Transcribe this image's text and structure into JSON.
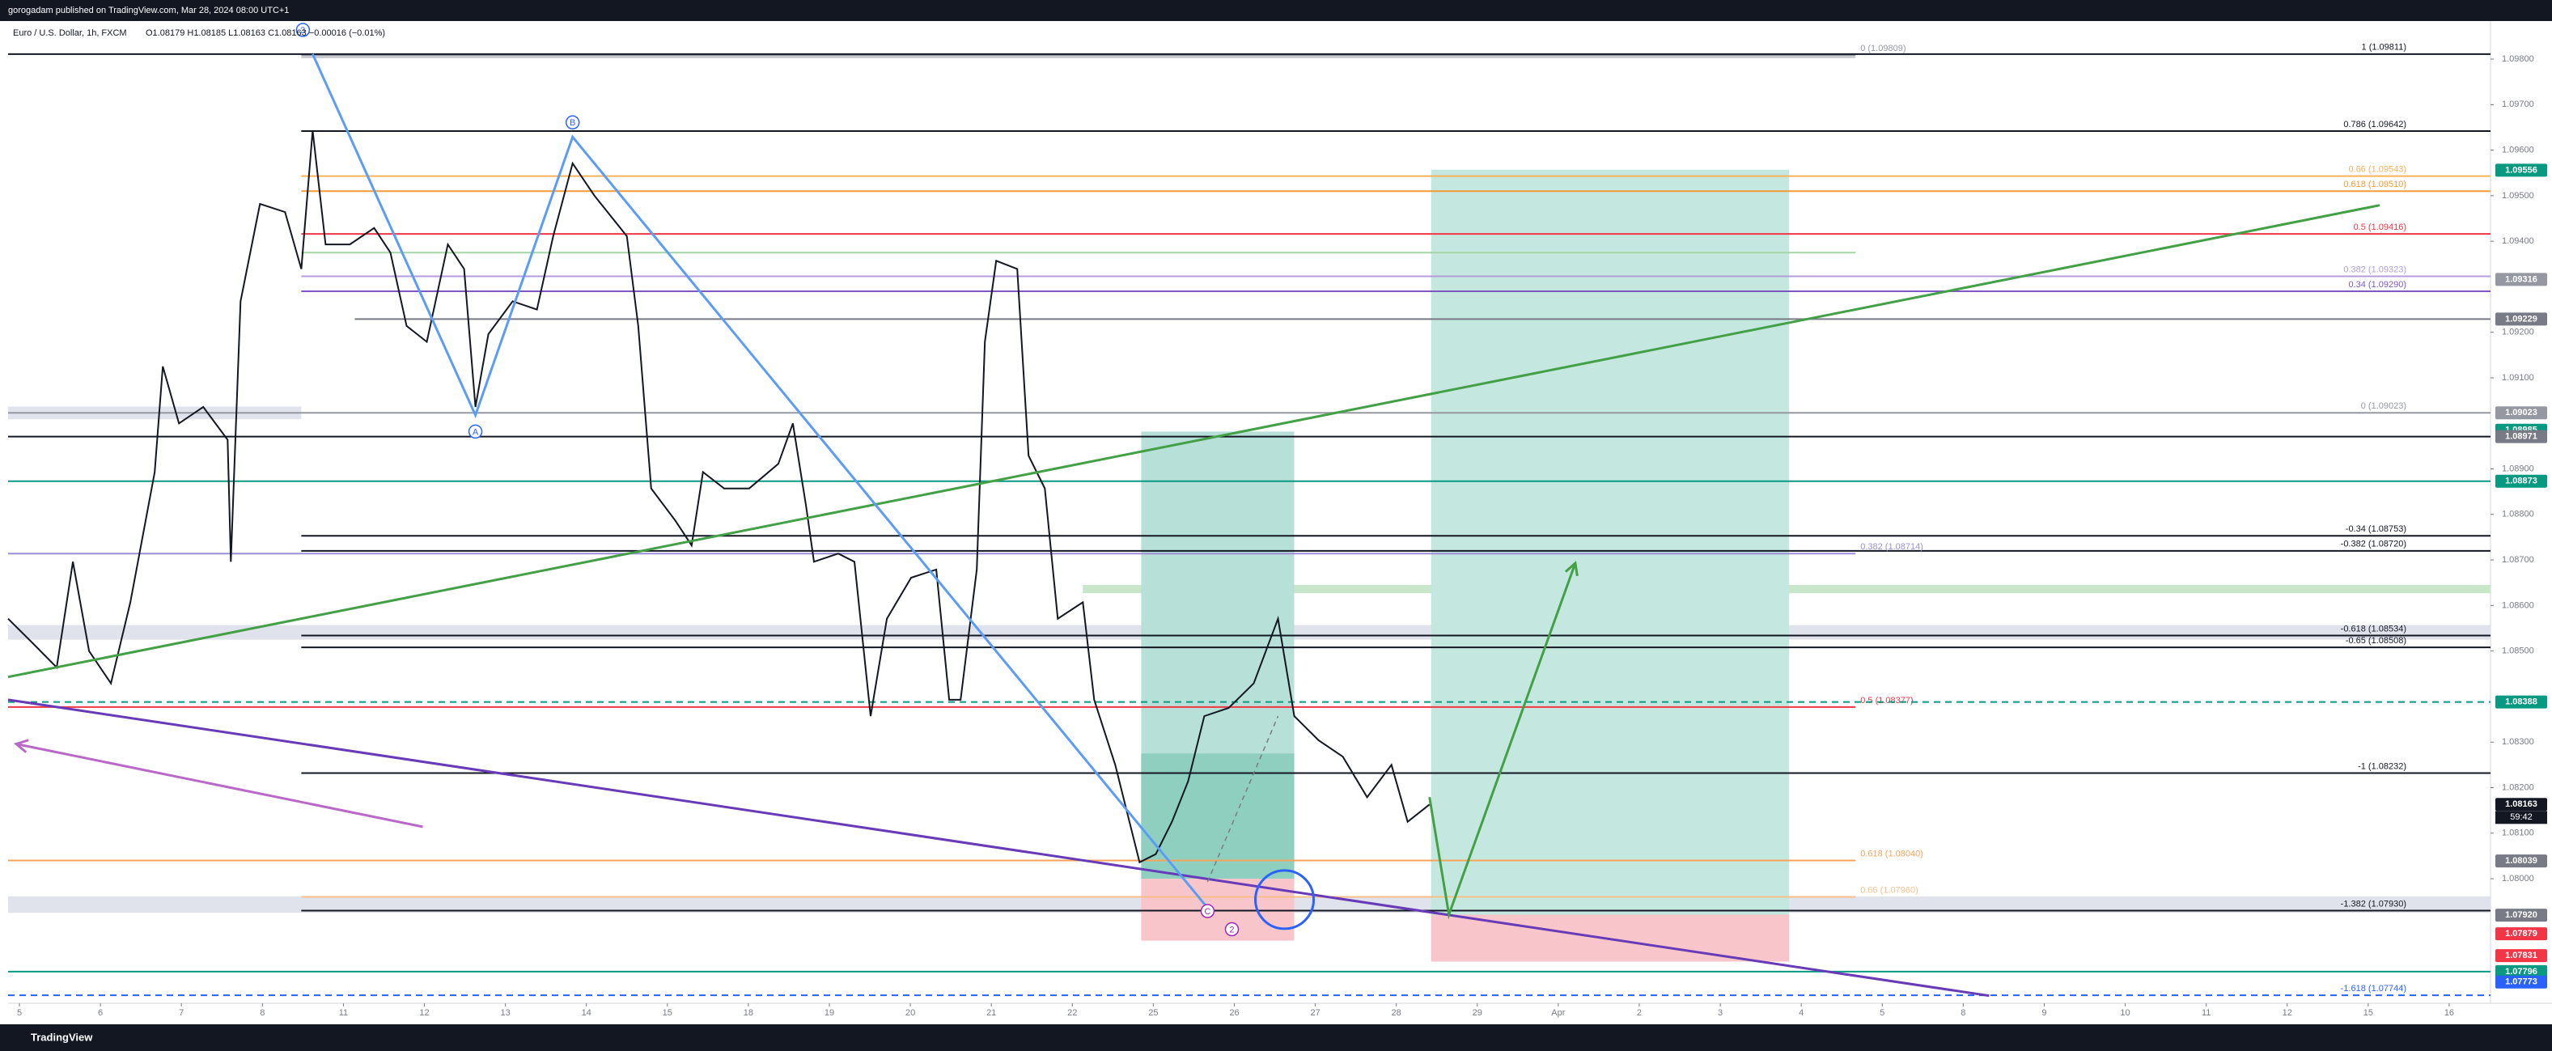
{
  "chart_data": {
    "type": "line",
    "header": "gorogadam published on TradingView.com, Mar 28, 2024 08:00 UTC+1",
    "ohlc": "O1.08179 H1.08185 L1.08163 C1.08163 −0.00016 (−0.01%)",
    "brand": "TradingView",
    "xlim": [
      -0.14,
      30.51
    ],
    "xticks": [
      {
        "value": 0,
        "label": "5"
      },
      {
        "value": 1,
        "label": "6"
      },
      {
        "value": 2,
        "label": "7"
      },
      {
        "value": 3,
        "label": "8"
      },
      {
        "value": 4,
        "label": "11"
      },
      {
        "value": 5,
        "label": "12"
      },
      {
        "value": 6,
        "label": "13"
      },
      {
        "value": 7,
        "label": "14"
      },
      {
        "value": 8,
        "label": "15"
      },
      {
        "value": 9,
        "label": "18"
      },
      {
        "value": 10,
        "label": "19"
      },
      {
        "value": 11,
        "label": "20"
      },
      {
        "value": 12,
        "label": "21"
      },
      {
        "value": 13,
        "label": "22"
      },
      {
        "value": 14,
        "label": "25"
      },
      {
        "value": 15,
        "label": "26"
      },
      {
        "value": 16,
        "label": "27"
      },
      {
        "value": 17,
        "label": "28"
      },
      {
        "value": 18,
        "label": "29"
      },
      {
        "value": 19,
        "label": "Apr"
      },
      {
        "value": 20,
        "label": "2"
      },
      {
        "value": 21,
        "label": "3"
      },
      {
        "value": 22,
        "label": "4"
      },
      {
        "value": 23,
        "label": "5"
      },
      {
        "value": 24,
        "label": "8"
      },
      {
        "value": 25,
        "label": "9"
      },
      {
        "value": 26,
        "label": "10"
      },
      {
        "value": 27,
        "label": "11"
      },
      {
        "value": 28,
        "label": "12"
      },
      {
        "value": 29,
        "label": "15"
      },
      {
        "value": 30,
        "label": "16"
      }
    ],
    "ylim": [
      1.0773,
      1.0988
    ],
    "yticks": [
      {
        "value": 1.098,
        "label": "1.09800"
      },
      {
        "value": 1.097,
        "label": "1.09700"
      },
      {
        "value": 1.096,
        "label": "1.09600"
      },
      {
        "value": 1.095,
        "label": "1.09500"
      },
      {
        "value": 1.094,
        "label": "1.09400"
      },
      {
        "value": 1.092,
        "label": "1.09200"
      },
      {
        "value": 1.091,
        "label": "1.09100"
      },
      {
        "value": 1.089,
        "label": "1.08900"
      },
      {
        "value": 1.088,
        "label": "1.08800"
      },
      {
        "value": 1.087,
        "label": "1.08700"
      },
      {
        "value": 1.086,
        "label": "1.08600"
      },
      {
        "value": 1.085,
        "label": "1.08500"
      },
      {
        "value": 1.083,
        "label": "1.08300"
      },
      {
        "value": 1.082,
        "label": "1.08200"
      },
      {
        "value": 1.081,
        "label": "1.08100"
      },
      {
        "value": 1.08,
        "label": "1.08000"
      }
    ],
    "x": [
      -0.14,
      0.16,
      0.46,
      0.66,
      0.86,
      1.13,
      1.37,
      1.67,
      1.77,
      1.97,
      2.27,
      2.57,
      2.61,
      2.73,
      2.97,
      3.28,
      3.48,
      3.62,
      3.78,
      4.08,
      4.38,
      4.58,
      4.78,
      5.03,
      5.29,
      5.49,
      5.63,
      5.79,
      6.09,
      6.39,
      6.59,
      6.83,
      7.1,
      7.5,
      7.64,
      7.8,
      8.1,
      8.3,
      8.44,
      8.7,
      9.01,
      9.37,
      9.55,
      9.71,
      9.81,
      10.11,
      10.31,
      10.51,
      10.71,
      11.01,
      11.32,
      11.48,
      11.62,
      11.82,
      11.92,
      12.06,
      12.32,
      12.46,
      12.66,
      12.82,
      13.13,
      13.27,
      13.53,
      13.83,
      14.03,
      14.23,
      14.43,
      14.63,
      14.93,
      15.24,
      15.54,
      15.74,
      16.04,
      16.34,
      16.64,
      16.94,
      17.14,
      17.41
    ],
    "series": [
      {
        "name": "Euro / U.S. Dollar, 1h, FXCM",
        "color": "#131722",
        "values": [
          1.08571,
          1.08518,
          1.08464,
          1.08696,
          1.085,
          1.08429,
          1.08607,
          1.08893,
          1.09125,
          1.09,
          1.09036,
          1.08964,
          1.08696,
          1.09268,
          1.09482,
          1.09464,
          1.09339,
          1.09643,
          1.09393,
          1.09393,
          1.09429,
          1.09375,
          1.09214,
          1.09179,
          1.09393,
          1.09339,
          1.09036,
          1.09196,
          1.09268,
          1.0925,
          1.09411,
          1.09571,
          1.095,
          1.09411,
          1.09214,
          1.08857,
          1.08786,
          1.08732,
          1.08893,
          1.08857,
          1.08857,
          1.08911,
          1.09,
          1.08821,
          1.08696,
          1.08714,
          1.08696,
          1.08357,
          1.08571,
          1.08661,
          1.08679,
          1.08393,
          1.08393,
          1.08679,
          1.09179,
          1.09357,
          1.09339,
          1.08929,
          1.08857,
          1.08571,
          1.08607,
          1.08393,
          1.0825,
          1.08036,
          1.08054,
          1.08125,
          1.08214,
          1.08357,
          1.08375,
          1.08429,
          1.08571,
          1.08357,
          1.08304,
          1.08268,
          1.08179,
          1.0825,
          1.08125,
          1.08163
        ]
      }
    ],
    "zones": [
      {
        "x": [
          3.48,
          22.67
        ],
        "y": [
          1.09812,
          1.09802
        ],
        "color": "#c9cbd1"
      },
      {
        "x": [
          -0.14,
          3.48
        ],
        "y": [
          1.09037,
          1.09009
        ],
        "color": "#e0e3eb"
      },
      {
        "x": [
          -0.14,
          30.51
        ],
        "y": [
          1.08557,
          1.08525
        ],
        "color": "#e0e3eb"
      },
      {
        "x": [
          -0.14,
          30.51
        ],
        "y": [
          1.07961,
          1.07925
        ],
        "color": "#e0e3eb"
      },
      {
        "x": [
          13.13,
          30.51
        ],
        "y": [
          1.08645,
          1.08627
        ],
        "color": "#c8e6c9"
      },
      {
        "x": [
          13.85,
          15.74
        ],
        "y": [
          1.08982,
          1.08
        ],
        "color": "#b7e1d8"
      },
      {
        "x": [
          13.85,
          15.74
        ],
        "y": [
          1.08275,
          1.08
        ],
        "color": "#8fcfbf"
      },
      {
        "x": [
          13.85,
          15.74
        ],
        "y": [
          1.08,
          1.07864
        ],
        "color": "#f8c5ca"
      },
      {
        "x": [
          17.43,
          21.85
        ],
        "y": [
          1.09557,
          1.07921
        ],
        "color": "#c4e7df"
      },
      {
        "x": [
          17.43,
          21.85
        ],
        "y": [
          1.07921,
          1.07818
        ],
        "color": "#f8c5ca"
      }
    ],
    "levels": [
      {
        "value": 1.09809,
        "x0": 3.48,
        "x1": 22.67,
        "color": "#9598a1",
        "label": "0 (1.09809)"
      },
      {
        "value": 1.09811,
        "x0": -0.14,
        "x1": 30.51,
        "color": "#131722",
        "label": "1 (1.09811)"
      },
      {
        "value": 1.09642,
        "x0": 3.48,
        "x1": 30.51,
        "color": "#131722",
        "label": "0.786 (1.09642)"
      },
      {
        "value": 1.09543,
        "x0": 3.48,
        "x1": 30.51,
        "color": "#f7b25c",
        "label": "0.66 (1.09543)"
      },
      {
        "value": 1.0951,
        "x0": 3.48,
        "x1": 30.51,
        "color": "#f29c38",
        "label": "0.618 (1.09510)"
      },
      {
        "value": 1.09416,
        "x0": 3.48,
        "x1": 30.51,
        "color": "#f23645",
        "label": "0.5 (1.09416)"
      },
      {
        "value": 1.09375,
        "x0": 3.48,
        "x1": 22.67,
        "color": "#a5d6a7"
      },
      {
        "value": 1.09323,
        "x0": 3.48,
        "x1": 30.51,
        "color": "#b39ddb",
        "label": "0.382 (1.09323)"
      },
      {
        "value": 1.0929,
        "x0": 3.48,
        "x1": 30.51,
        "color": "#7e57c2",
        "label": "0.34 (1.09290)"
      },
      {
        "value": 1.09229,
        "x0": 4.14,
        "x1": 30.51,
        "color": "#787b86"
      },
      {
        "value": 1.09023,
        "x0": -0.14,
        "x1": 30.51,
        "color": "#9598a1",
        "label": "0 (1.09023)"
      },
      {
        "value": 1.08971,
        "x0": -0.14,
        "x1": 30.51,
        "color": "#131722"
      },
      {
        "value": 1.08873,
        "x0": -0.14,
        "x1": 30.51,
        "color": "#089981"
      },
      {
        "value": 1.08753,
        "x0": 3.48,
        "x1": 30.51,
        "color": "#131722",
        "label": "-0.34 (1.08753)"
      },
      {
        "value": 1.0872,
        "x0": 3.48,
        "x1": 30.51,
        "color": "#131722",
        "label": "-0.382 (1.08720)"
      },
      {
        "value": 1.08714,
        "x0": -0.14,
        "x1": 22.67,
        "color": "#9c8fd6",
        "label": "0.382 (1.08714)"
      },
      {
        "value": 1.08534,
        "x0": 3.48,
        "x1": 30.51,
        "color": "#131722",
        "label": "-0.618 (1.08534)"
      },
      {
        "value": 1.08508,
        "x0": 3.48,
        "x1": 30.51,
        "color": "#131722",
        "label": "-0.65 (1.08508)"
      },
      {
        "value": 1.08377,
        "x0": -0.14,
        "x1": 22.67,
        "color": "#f23645",
        "label": "0.5 (1.08377)"
      },
      {
        "value": 1.08388,
        "x0": -0.14,
        "x1": 30.51,
        "color": "#089981",
        "dash": true
      },
      {
        "value": 1.08232,
        "x0": 3.48,
        "x1": 30.51,
        "color": "#131722",
        "label": "-1 (1.08232)"
      },
      {
        "value": 1.0804,
        "x0": -0.14,
        "x1": 22.67,
        "color": "#f7a35c",
        "label": "0.618 (1.08040)"
      },
      {
        "value": 1.0796,
        "x0": 3.48,
        "x1": 22.67,
        "color": "#f7c08a",
        "label": "0.66 (1.07960)"
      },
      {
        "value": 1.0793,
        "x0": 3.48,
        "x1": 30.51,
        "color": "#131722",
        "label": "-1.382 (1.07930)"
      },
      {
        "value": 1.07796,
        "x0": -0.14,
        "x1": 30.51,
        "color": "#089981"
      },
      {
        "value": 1.07744,
        "x0": -0.14,
        "x1": 30.51,
        "color": "#2962ff",
        "dash": true,
        "label": "-1.618 (1.07744)"
      }
    ],
    "drawings": [
      {
        "x": [
          -0.14,
          29.14
        ],
        "y": [
          1.08443,
          1.09479
        ],
        "color": "#43a047"
      },
      {
        "x": [
          -0.14,
          24.32
        ],
        "y": [
          1.08393,
          1.07743
        ],
        "color": "#673ab7"
      },
      {
        "x": [
          3.62,
          5.63,
          6.83,
          14.67
        ],
        "y": [
          1.09811,
          1.09018,
          1.09629,
          1.07936
        ],
        "color": "#5b9cf6"
      },
      {
        "x": [
          4.98,
          -0.04
        ],
        "y": [
          1.08114,
          1.08296
        ],
        "color": "#ba68c8",
        "arrow": true
      },
      {
        "x": [
          17.41,
          17.65,
          19.21
        ],
        "y": [
          1.08179,
          1.07921,
          1.08693
        ],
        "color": "#43a047",
        "arrow": true
      },
      {
        "x": [
          14.67,
          15.54
        ],
        "y": [
          1.07993,
          1.08357
        ],
        "color": "#787b86",
        "dash": true
      },
      {
        "x": [
          15.62
        ],
        "y": [
          1.07954
        ],
        "color": "#2962ff",
        "shape": "circle"
      }
    ],
    "wave_labels": [
      {
        "text": "3",
        "x": 3.5,
        "y": 1.09864,
        "color": "#2962ff"
      },
      {
        "text": "B",
        "x": 6.83,
        "y": 1.09661,
        "color": "#2962ff"
      },
      {
        "text": "A",
        "x": 5.63,
        "y": 1.08982,
        "color": "#2962ff"
      },
      {
        "text": "C",
        "x": 14.67,
        "y": 1.07929,
        "color": "#9c27b0"
      },
      {
        "text": "2",
        "x": 14.97,
        "y": 1.07889,
        "color": "#9c27b0"
      }
    ],
    "price_tags": [
      {
        "value": 1.09556,
        "label": "1.09556",
        "color": "#089981"
      },
      {
        "value": 1.09316,
        "label": "1.09316",
        "color": "#9598a1"
      },
      {
        "value": 1.09229,
        "label": "1.09229",
        "color": "#787b86"
      },
      {
        "value": 1.09023,
        "label": "1.09023",
        "color": "#9598a1"
      },
      {
        "value": 1.08985,
        "label": "1.08985",
        "color": "#089981"
      },
      {
        "value": 1.08971,
        "label": "1.08971",
        "color": "#787b86"
      },
      {
        "value": 1.08873,
        "label": "1.08873",
        "color": "#089981"
      },
      {
        "value": 1.08388,
        "label": "1.08388",
        "color": "#089981"
      },
      {
        "value": 1.08163,
        "label": "1.08163",
        "color": "#131722",
        "countdown": "59:42"
      },
      {
        "value": 1.08039,
        "label": "1.08039",
        "color": "#787b86"
      },
      {
        "value": 1.0792,
        "label": "1.07920",
        "color": "#787b86"
      },
      {
        "value": 1.07879,
        "label": "1.07879",
        "color": "#f23645"
      },
      {
        "value": 1.07831,
        "label": "1.07831",
        "color": "#f23645"
      },
      {
        "value": 1.07796,
        "label": "1.07796",
        "color": "#089981"
      },
      {
        "value": 1.07773,
        "label": "1.07773",
        "color": "#2962ff"
      }
    ]
  }
}
